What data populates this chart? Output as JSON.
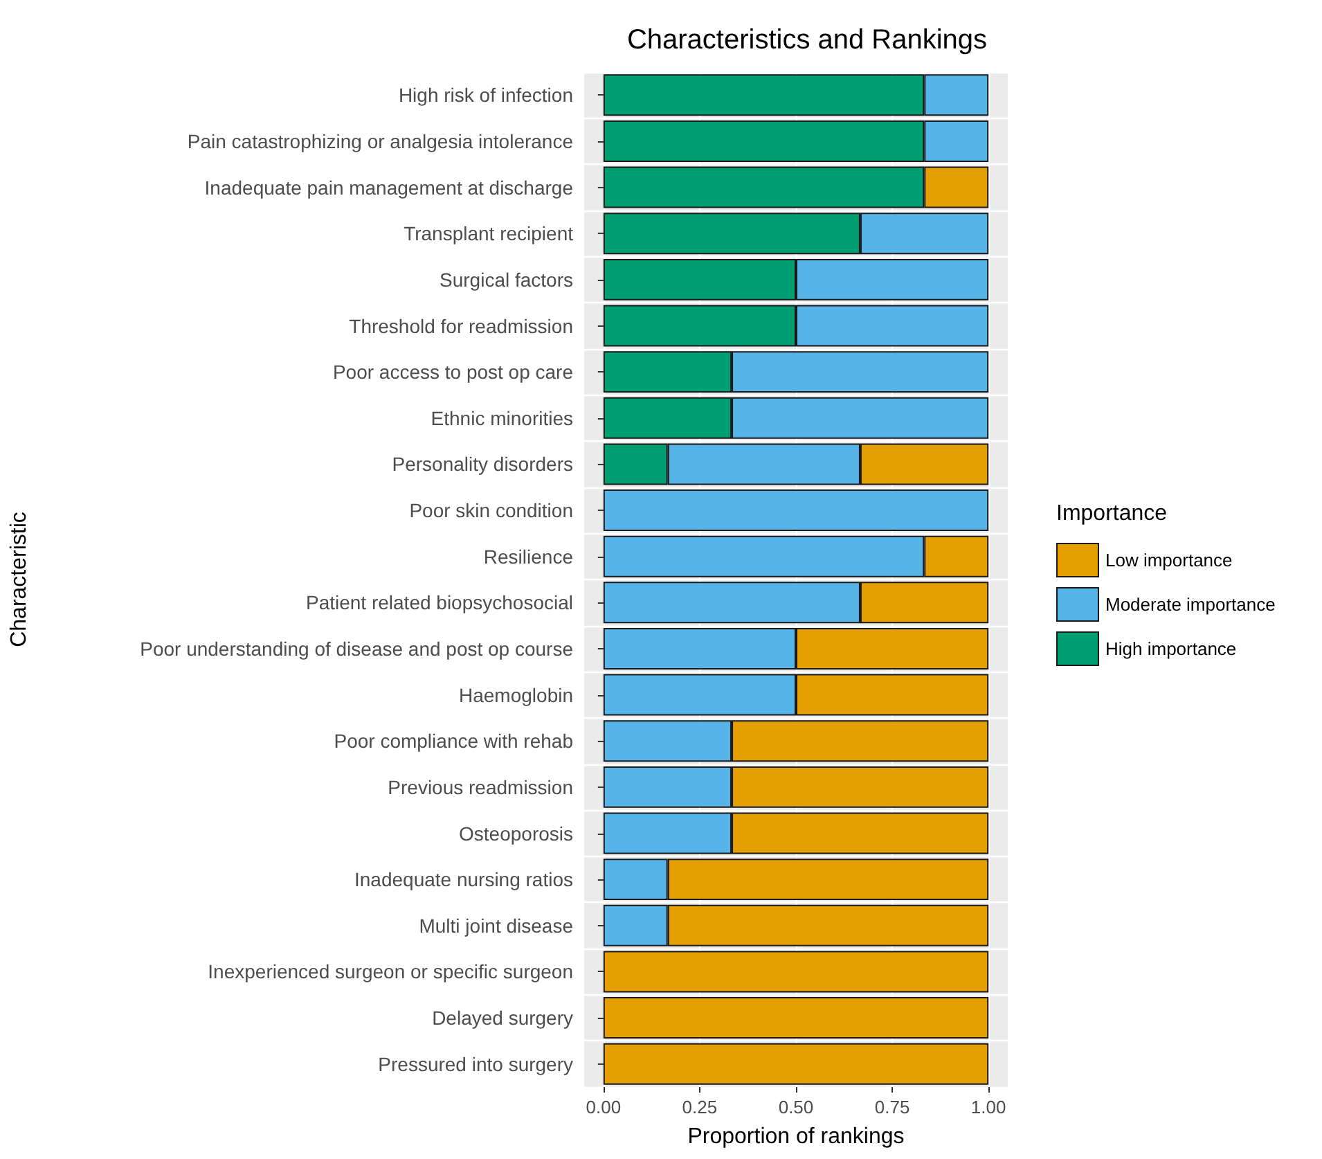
{
  "chart_data": {
    "type": "bar",
    "orientation": "horizontal",
    "stacked": true,
    "title": "Characteristics and Rankings",
    "xlabel": "Proportion of rankings",
    "ylabel": "Characteristic",
    "legend_title": "Importance",
    "legend": "right",
    "grid": true,
    "categories": [
      "High risk of infection",
      "Pain catastrophizing or analgesia intolerance",
      "Inadequate pain management at discharge",
      "Transplant recipient",
      "Surgical factors",
      "Threshold for readmission",
      "Poor access to post op care",
      "Ethnic minorities",
      "Personality disorders",
      "Poor skin condition",
      "Resilience",
      "Patient related biopsychosocial",
      "Poor understanding of disease and post op course",
      "Haemoglobin",
      "Poor compliance with rehab",
      "Previous readmission",
      "Osteoporosis",
      "Inadequate nursing ratios",
      "Multi joint disease",
      "Inexperienced surgeon or specific surgeon",
      "Delayed surgery",
      "Pressured into surgery"
    ],
    "xlim": [
      -0.05,
      1.05
    ],
    "xticks": [
      {
        "value": 0,
        "label": "0.00"
      },
      {
        "value": 0.25,
        "label": "0.25"
      },
      {
        "value": 0.5,
        "label": "0.50"
      },
      {
        "value": 0.75,
        "label": "0.75"
      },
      {
        "value": 1,
        "label": "1.00"
      }
    ],
    "series": [
      {
        "name": "High importance",
        "color": "#009e73",
        "values": [
          0.833,
          0.833,
          0.833,
          0.667,
          0.5,
          0.5,
          0.333,
          0.333,
          0.167,
          0,
          0,
          0,
          0,
          0,
          0,
          0,
          0,
          0,
          0,
          0,
          0,
          0
        ]
      },
      {
        "name": "Moderate importance",
        "color": "#56b4e9",
        "values": [
          0.167,
          0.167,
          0,
          0.333,
          0.5,
          0.5,
          0.667,
          0.667,
          0.5,
          1,
          0.833,
          0.667,
          0.5,
          0.5,
          0.333,
          0.333,
          0.333,
          0.167,
          0.167,
          0,
          0,
          0
        ]
      },
      {
        "name": "Low importance",
        "color": "#e69f00",
        "values": [
          0,
          0,
          0.167,
          0,
          0,
          0,
          0,
          0,
          0.333,
          0,
          0.167,
          0.333,
          0.5,
          0.5,
          0.667,
          0.667,
          0.667,
          0.833,
          0.833,
          1,
          1,
          1
        ]
      }
    ]
  }
}
